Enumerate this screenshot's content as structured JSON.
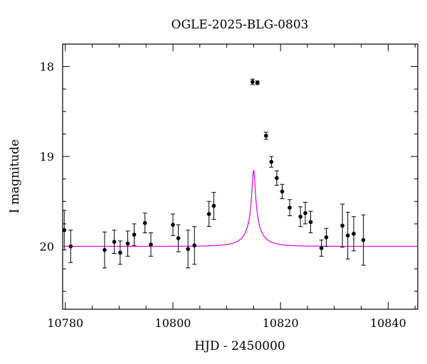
{
  "chart_data": {
    "type": "scatter",
    "title": "OGLE-2025-BLG-0803",
    "xlabel": "HJD - 2450000",
    "ylabel": "I magnitude",
    "xlim": [
      10779.5,
      10845.5
    ],
    "ylim": [
      20.7,
      17.75
    ],
    "y_inverted": true,
    "grid": false,
    "x_ticks": [
      10780,
      10800,
      10820,
      10840
    ],
    "y_ticks": [
      18,
      19,
      20
    ],
    "point_color": "#000000",
    "model_color": "#e000e0",
    "series": [
      {
        "name": "",
        "style": "points-with-errorbars",
        "points": [
          {
            "x": 10779.8,
            "y": 19.82,
            "err": 0.22
          },
          {
            "x": 10781.0,
            "y": 20.0,
            "err": 0.18
          },
          {
            "x": 10787.3,
            "y": 20.04,
            "err": 0.2
          },
          {
            "x": 10789.1,
            "y": 19.95,
            "err": 0.13
          },
          {
            "x": 10790.2,
            "y": 20.07,
            "err": 0.13
          },
          {
            "x": 10791.6,
            "y": 19.97,
            "err": 0.14
          },
          {
            "x": 10792.8,
            "y": 19.87,
            "err": 0.12
          },
          {
            "x": 10794.8,
            "y": 19.74,
            "err": 0.11
          },
          {
            "x": 10795.9,
            "y": 19.98,
            "err": 0.13
          },
          {
            "x": 10800.0,
            "y": 19.76,
            "err": 0.12
          },
          {
            "x": 10801.0,
            "y": 19.91,
            "err": 0.15
          },
          {
            "x": 10802.8,
            "y": 20.03,
            "err": 0.21
          },
          {
            "x": 10804.0,
            "y": 19.99,
            "err": 0.21
          },
          {
            "x": 10806.7,
            "y": 19.64,
            "err": 0.14
          },
          {
            "x": 10807.6,
            "y": 19.55,
            "err": 0.15
          },
          {
            "x": 10814.8,
            "y": 18.17,
            "err": 0.03
          },
          {
            "x": 10815.7,
            "y": 18.18,
            "err": 0.02
          },
          {
            "x": 10817.3,
            "y": 18.77,
            "err": 0.04
          },
          {
            "x": 10818.3,
            "y": 19.06,
            "err": 0.06
          },
          {
            "x": 10819.3,
            "y": 19.24,
            "err": 0.08
          },
          {
            "x": 10820.3,
            "y": 19.39,
            "err": 0.08
          },
          {
            "x": 10821.7,
            "y": 19.57,
            "err": 0.09
          },
          {
            "x": 10823.7,
            "y": 19.67,
            "err": 0.11
          },
          {
            "x": 10824.6,
            "y": 19.63,
            "err": 0.12
          },
          {
            "x": 10825.6,
            "y": 19.73,
            "err": 0.12
          },
          {
            "x": 10827.6,
            "y": 20.02,
            "err": 0.09
          },
          {
            "x": 10828.5,
            "y": 19.9,
            "err": 0.1
          },
          {
            "x": 10831.5,
            "y": 19.77,
            "err": 0.24
          },
          {
            "x": 10832.5,
            "y": 19.88,
            "err": 0.26
          },
          {
            "x": 10833.6,
            "y": 19.86,
            "err": 0.19
          },
          {
            "x": 10835.4,
            "y": 19.93,
            "err": 0.28
          }
        ]
      },
      {
        "name": "",
        "style": "model-curve",
        "t0": 10815.0,
        "tE": 4.0,
        "u0": 0.07,
        "baseline_mag": 20.0,
        "flux_fraction": 0.0895
      }
    ]
  }
}
